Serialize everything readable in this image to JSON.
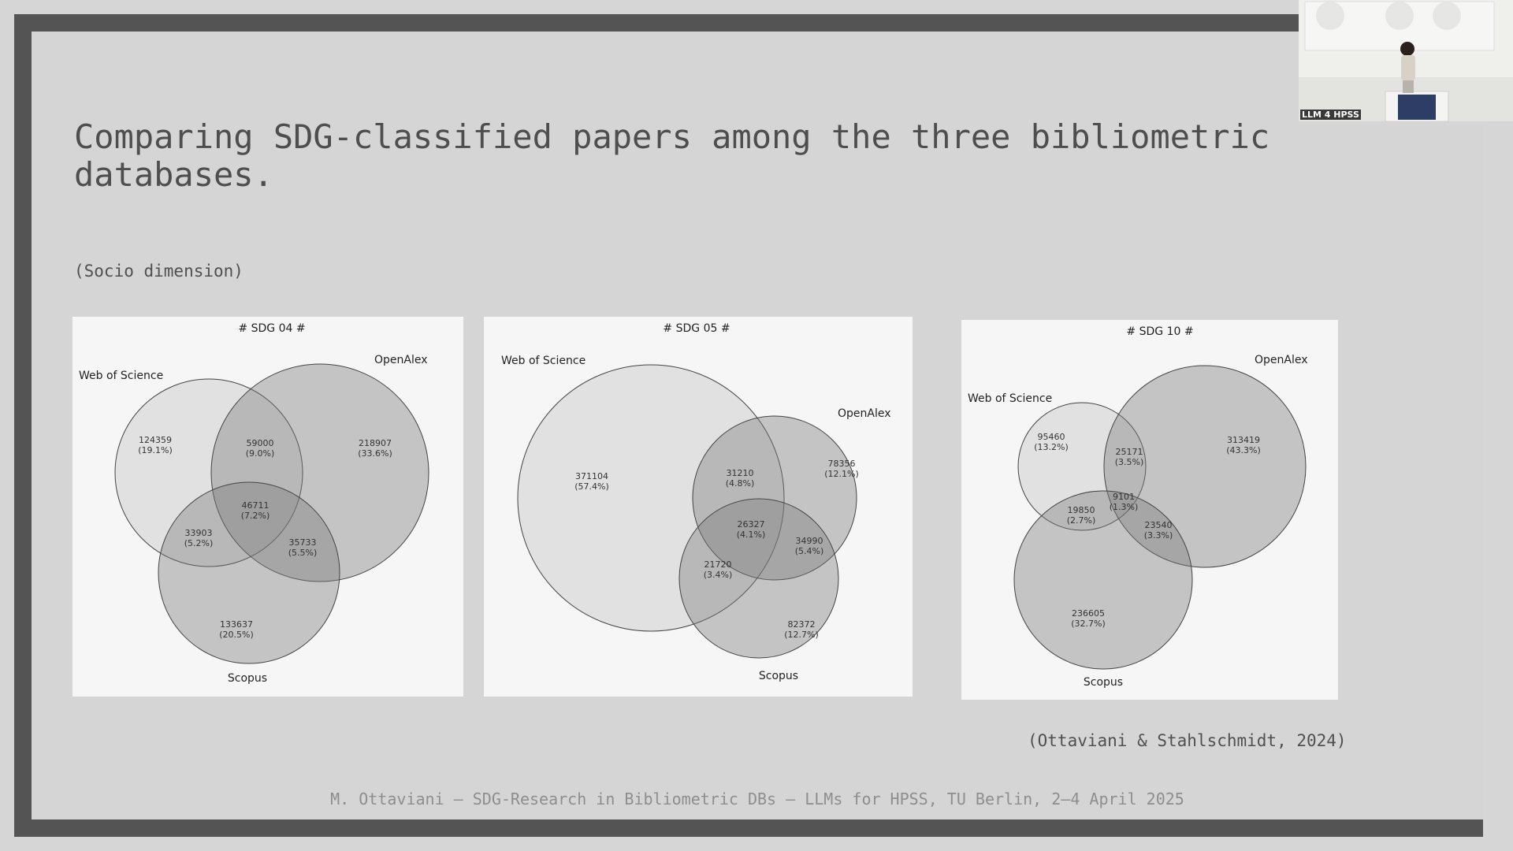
{
  "slide": {
    "title": "Comparing SDG-classified papers among the three bibliometric databases.",
    "subtitle": "(Socio dimension)",
    "citation": "(Ottaviani & Stahlschmidt, 2024)",
    "footer": "M. Ottaviani – SDG-Research in Bibliometric DBs – LLMs for HPSS, TU Berlin, 2–4 April 2025"
  },
  "video": {
    "label": "LLM 4 HPSS"
  },
  "colors": {
    "frame": "#545454",
    "slide_bg": "#d5d5d5",
    "panel_bg": "#f6f6f6",
    "venn_fill": "#7a7a7a",
    "venn_stroke": "#444444"
  },
  "venns": [
    {
      "title": "# SDG 04 #",
      "set_labels": [
        "Web of Science",
        "OpenAlex",
        "Scopus"
      ],
      "regions": [
        {
          "sets": "WoS only",
          "count": "124359",
          "pct": "(19.1%)"
        },
        {
          "sets": "WoS & OpenAlex",
          "count": "59000",
          "pct": "(9.0%)"
        },
        {
          "sets": "OpenAlex only",
          "count": "218907",
          "pct": "(33.6%)"
        },
        {
          "sets": "All three",
          "count": "46711",
          "pct": "(7.2%)"
        },
        {
          "sets": "WoS & Scopus",
          "count": "33903",
          "pct": "(5.2%)"
        },
        {
          "sets": "OpenAlex & Scopus",
          "count": "35733",
          "pct": "(5.5%)"
        },
        {
          "sets": "Scopus only",
          "count": "133637",
          "pct": "(20.5%)"
        }
      ]
    },
    {
      "title": "# SDG 05 #",
      "set_labels": [
        "Web of Science",
        "OpenAlex",
        "Scopus"
      ],
      "regions": [
        {
          "sets": "WoS only",
          "count": "371104",
          "pct": "(57.4%)"
        },
        {
          "sets": "WoS & OpenAlex",
          "count": "31210",
          "pct": "(4.8%)"
        },
        {
          "sets": "OpenAlex only",
          "count": "78356",
          "pct": "(12.1%)"
        },
        {
          "sets": "All three",
          "count": "26327",
          "pct": "(4.1%)"
        },
        {
          "sets": "OpenAlex & Scopus",
          "count": "34990",
          "pct": "(5.4%)"
        },
        {
          "sets": "WoS & Scopus",
          "count": "21720",
          "pct": "(3.4%)"
        },
        {
          "sets": "Scopus only",
          "count": "82372",
          "pct": "(12.7%)"
        }
      ]
    },
    {
      "title": "# SDG 10 #",
      "set_labels": [
        "Web of Science",
        "OpenAlex",
        "Scopus"
      ],
      "regions": [
        {
          "sets": "WoS only",
          "count": "95460",
          "pct": "(13.2%)"
        },
        {
          "sets": "WoS & OpenAlex",
          "count": "25171",
          "pct": "(3.5%)"
        },
        {
          "sets": "OpenAlex only",
          "count": "313419",
          "pct": "(43.3%)"
        },
        {
          "sets": "All three",
          "count": "9101",
          "pct": "(1.3%)"
        },
        {
          "sets": "WoS & Scopus",
          "count": "19850",
          "pct": "(2.7%)"
        },
        {
          "sets": "OpenAlex & Scopus",
          "count": "23540",
          "pct": "(3.3%)"
        },
        {
          "sets": "Scopus only",
          "count": "236605",
          "pct": "(32.7%)"
        }
      ]
    }
  ]
}
